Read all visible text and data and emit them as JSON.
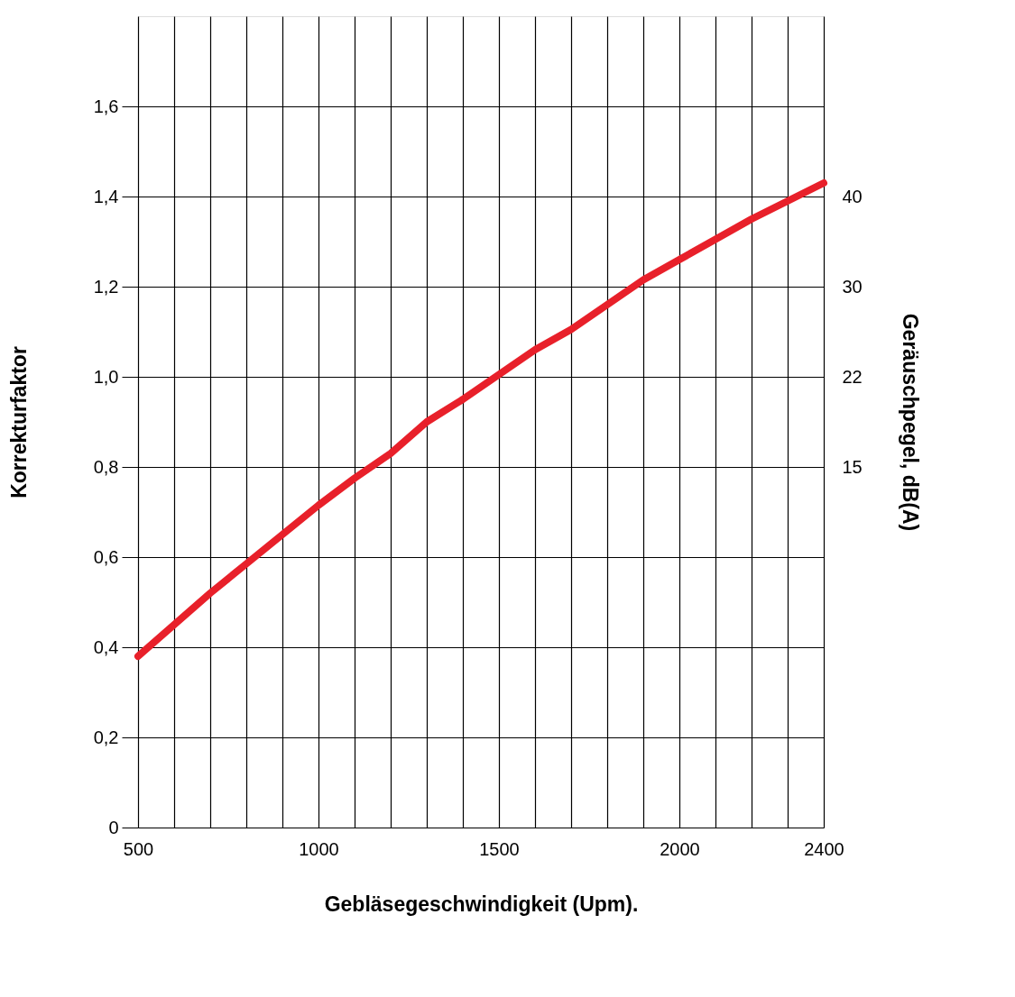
{
  "chart_data": {
    "type": "line",
    "xlabel": "Gebläsegeschwindigkeit (Upm).",
    "ylabel": "Korrekturfaktor",
    "y2label": "Geräuschpegel, dB(A)",
    "x": [
      500,
      600,
      700,
      800,
      900,
      1000,
      1100,
      1200,
      1300,
      1400,
      1500,
      1600,
      1700,
      1800,
      1900,
      2000,
      2100,
      2200,
      2300,
      2400
    ],
    "series": [
      {
        "color": "#e8202a",
        "values": [
          0.38,
          0.45,
          0.52,
          0.585,
          0.65,
          0.715,
          0.775,
          0.83,
          0.9,
          0.95,
          1.005,
          1.06,
          1.105,
          1.16,
          1.215,
          1.26,
          1.305,
          1.35,
          1.39,
          1.43
        ]
      }
    ],
    "xlim": [
      500,
      2400
    ],
    "xticks": [
      500,
      {
        "value": 600,
        "label": null
      },
      {
        "value": 700,
        "label": null
      },
      {
        "value": 800,
        "label": null
      },
      {
        "value": 900,
        "label": null
      },
      1000,
      {
        "value": 1100,
        "label": null
      },
      {
        "value": 1200,
        "label": null
      },
      {
        "value": 1300,
        "label": null
      },
      {
        "value": 1400,
        "label": null
      },
      1500,
      {
        "value": 1600,
        "label": null
      },
      {
        "value": 1700,
        "label": null
      },
      {
        "value": 1800,
        "label": null
      },
      {
        "value": 1900,
        "label": null
      },
      2000,
      {
        "value": 2100,
        "label": null
      },
      {
        "value": 2200,
        "label": null
      },
      {
        "value": 2300,
        "label": null
      },
      2400
    ],
    "ylim": [
      0,
      1.8
    ],
    "yticks": [
      0,
      {
        "value": 0.2,
        "label": "0,2"
      },
      {
        "value": 0.4,
        "label": "0,4"
      },
      {
        "value": 0.6,
        "label": "0,6"
      },
      {
        "value": 0.8,
        "label": "0,8"
      },
      {
        "value": 1.0,
        "label": "1,0"
      },
      {
        "value": 1.2,
        "label": "1,2"
      },
      {
        "value": 1.4,
        "label": "1,4"
      },
      {
        "value": 1.6,
        "label": "1,6"
      }
    ],
    "y2_categories": [
      null,
      null,
      "40",
      "30",
      "22",
      "15",
      null,
      null,
      null,
      null
    ],
    "grid": true,
    "line_style": "solid",
    "legend": false
  }
}
